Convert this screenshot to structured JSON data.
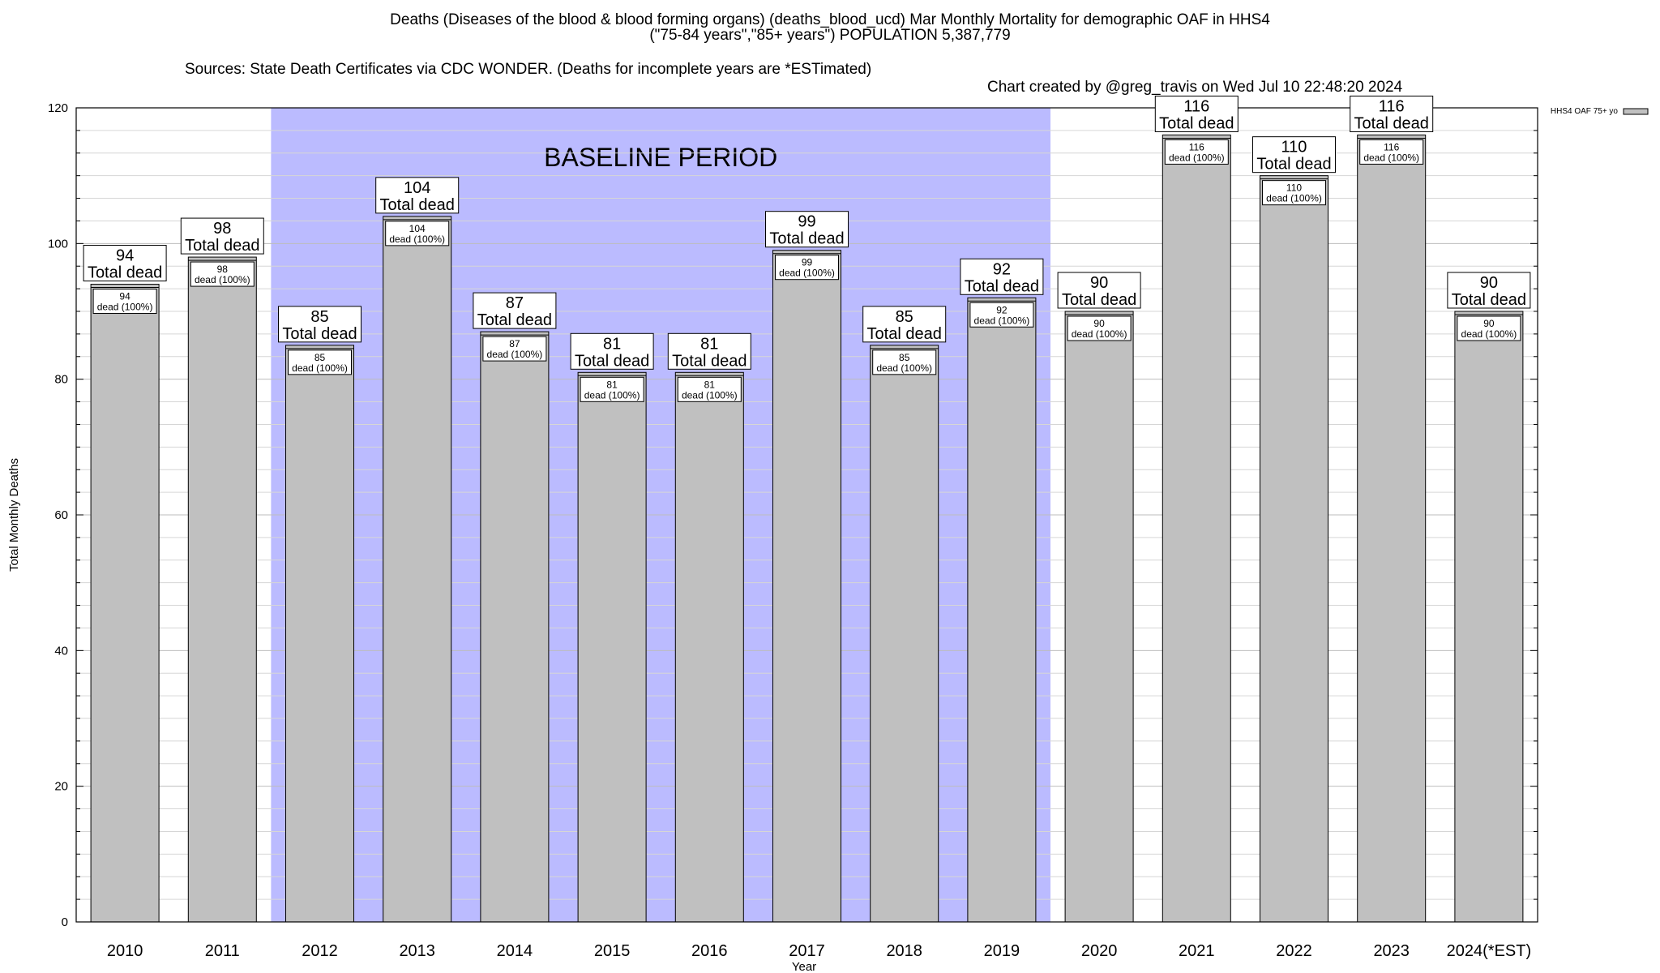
{
  "title": {
    "line1": "Deaths (Diseases of the blood & blood forming organs) (deaths_blood_ucd) Mar Monthly Mortality for demographic OAF in HHS4",
    "line2": "(\"75-84 years\",\"85+ years\") POPULATION 5,387,779",
    "sources": "Sources: State Death Certificates via CDC WONDER. (Deaths for incomplete years are *ESTimated)",
    "credit": "Chart created by @greg_travis on Wed Jul 10 22:48:20 2024"
  },
  "chart_data": {
    "type": "bar",
    "categories": [
      "2010",
      "2011",
      "2012",
      "2013",
      "2014",
      "2015",
      "2016",
      "2017",
      "2018",
      "2019",
      "2020",
      "2021",
      "2022",
      "2023",
      "2024(*EST)"
    ],
    "series": [
      {
        "name": "HHS4 OAF 75+ yo",
        "values": [
          94,
          98,
          85,
          104,
          87,
          81,
          81,
          99,
          85,
          92,
          90,
          116,
          110,
          116,
          90
        ]
      }
    ],
    "total_label": "Total dead",
    "inner_label_suffix": "dead (100%)",
    "xlabel": "Year",
    "ylabel": "Total Monthly Deaths",
    "ylim": [
      0,
      120
    ],
    "yticks": [
      0,
      20,
      40,
      60,
      80,
      100,
      120
    ],
    "grid": true,
    "legend_position": "top-right",
    "baseline_period": {
      "label": "BASELINE PERIOD",
      "start": "2012",
      "end": "2019"
    },
    "colors": {
      "bar": "#c0c0c0",
      "baseline": "#bbbbff",
      "grid": "#c8c8c8"
    }
  }
}
